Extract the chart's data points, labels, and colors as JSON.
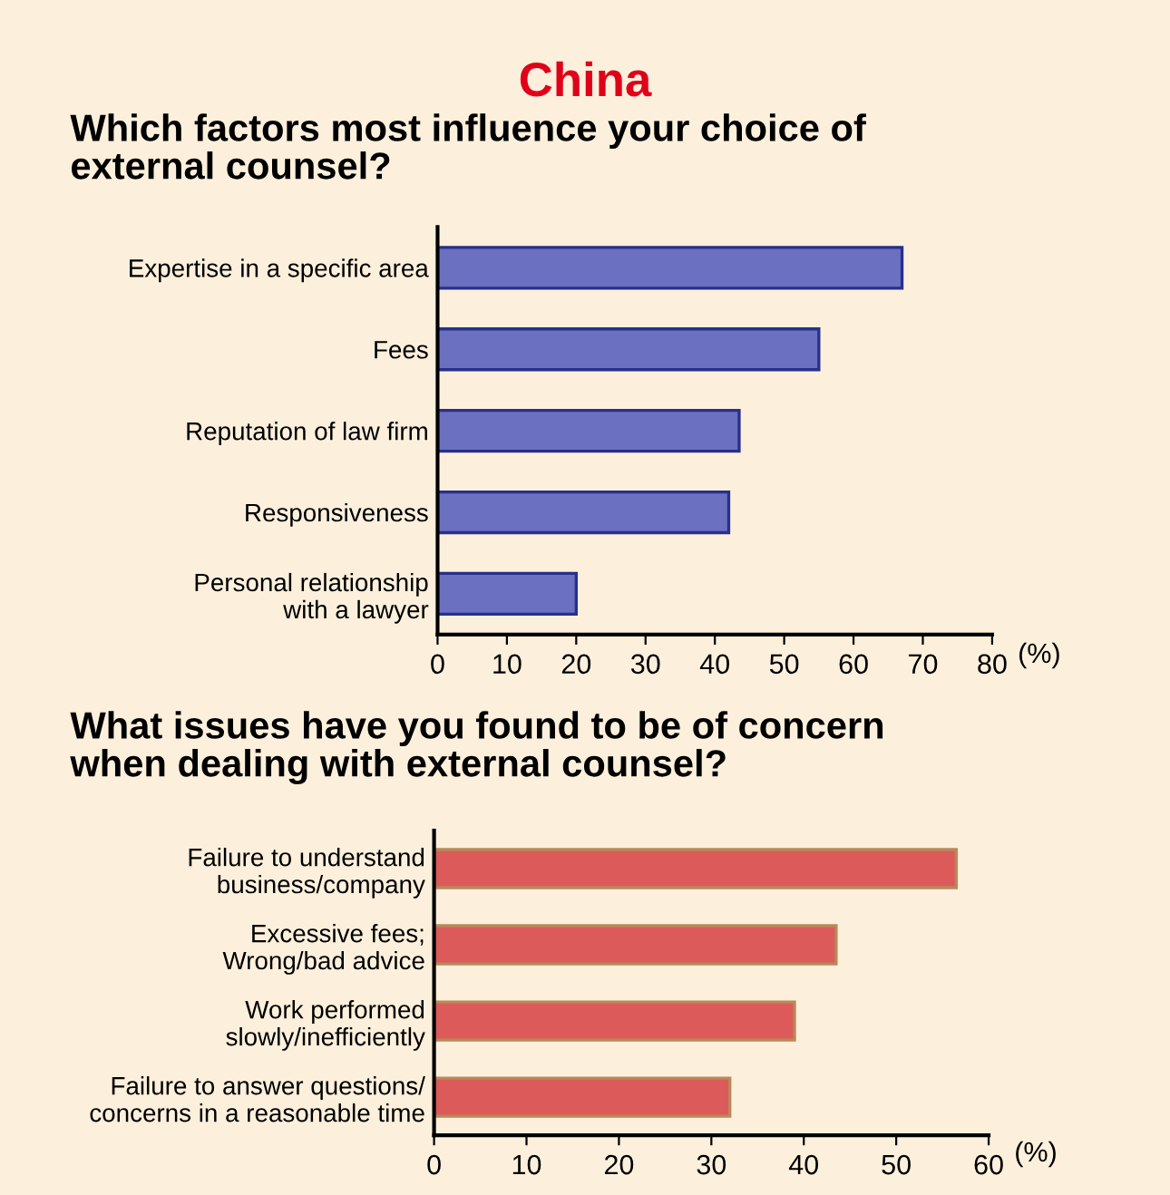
{
  "chart_data": [
    {
      "type": "bar",
      "orientation": "horizontal",
      "title": "China",
      "subtitle": "Which factors most influence your choice of\nexternal counsel?",
      "xlabel": "(%)",
      "categories": [
        "Expertise in a specific area",
        "Fees",
        "Reputation of law firm",
        "Responsiveness",
        "Personal relationship\nwith a lawyer"
      ],
      "values": [
        67,
        55,
        43.5,
        42,
        20
      ],
      "color": "#6b70c0",
      "xlim": [
        0,
        80
      ],
      "xticks": [
        0,
        10,
        20,
        30,
        40,
        50,
        60,
        70,
        80
      ],
      "grid": false,
      "legend": false
    },
    {
      "type": "bar",
      "orientation": "horizontal",
      "title": "What issues have you found to be of concern\nwhen dealing with external counsel?",
      "xlabel": "(%)",
      "categories": [
        "Failure to understand\nbusiness/company",
        "Excessive fees;\nWrong/bad advice",
        "Work performed\nslowly/inefficiently",
        "Failure to answer questions/\nconcerns in a reasonable time"
      ],
      "values": [
        56.5,
        43.5,
        39,
        32
      ],
      "color": "#dc5a5a",
      "xlim": [
        0,
        60
      ],
      "xticks": [
        0,
        10,
        20,
        30,
        40,
        50,
        60
      ],
      "grid": false,
      "legend": false
    }
  ]
}
